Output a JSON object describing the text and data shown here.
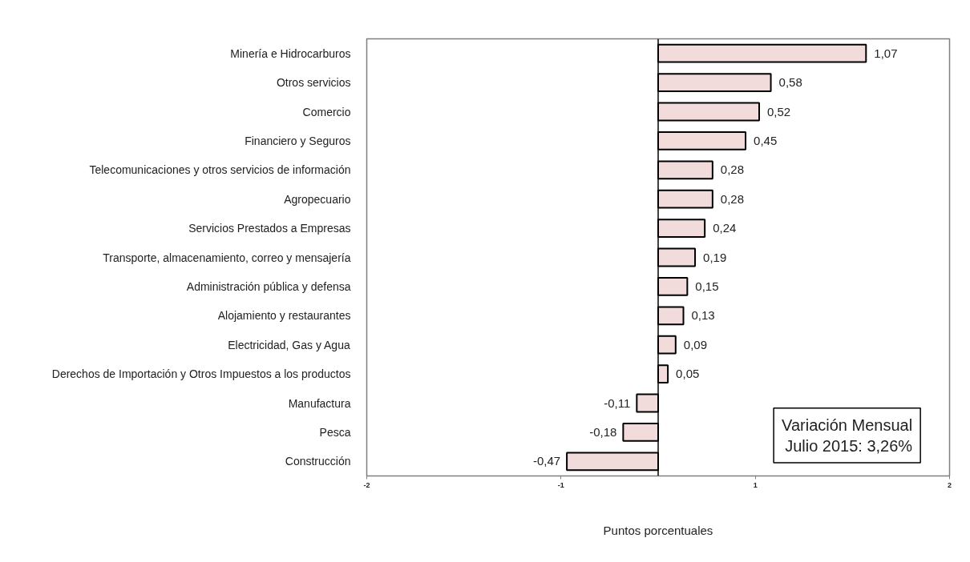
{
  "chart_data": {
    "type": "bar",
    "orientation": "horizontal",
    "categories": [
      "Minería e Hidrocarburos",
      "Otros servicios",
      "Comercio",
      "Financiero y Seguros",
      "Telecomunicaciones y otros servicios de información",
      "Agropecuario",
      "Servicios Prestados a Empresas",
      "Transporte, almacenamiento, correo y mensajería",
      "Administración pública y defensa",
      "Alojamiento y restaurantes",
      "Electricidad, Gas y Agua",
      "Derechos de Importación y Otros Impuestos a los productos",
      "Manufactura",
      "Pesca",
      "Construcción"
    ],
    "values": [
      1.07,
      0.58,
      0.52,
      0.45,
      0.28,
      0.28,
      0.24,
      0.19,
      0.15,
      0.13,
      0.09,
      0.05,
      -0.11,
      -0.18,
      -0.47
    ],
    "value_labels": [
      "1,07",
      "0,58",
      "0,52",
      "0,45",
      "0,28",
      "0,28",
      "0,24",
      "0,19",
      "0,15",
      "0,13",
      "0,09",
      "0,05",
      "-0,11",
      "-0,18",
      "-0,47"
    ],
    "color": "#f2dcdb",
    "xlim": [
      -1.5,
      1.5
    ],
    "xticks": [
      {
        "value": -1.5,
        "label": "-2"
      },
      {
        "value": -0.5,
        "label": "-1"
      },
      {
        "value": 0.5,
        "label": "1"
      },
      {
        "value": 1.5,
        "label": "2"
      }
    ],
    "xlabel": "Puntos porcentuales",
    "annotations": [
      "Variación Mensual",
      "Julio 2015: 3,26%"
    ]
  }
}
